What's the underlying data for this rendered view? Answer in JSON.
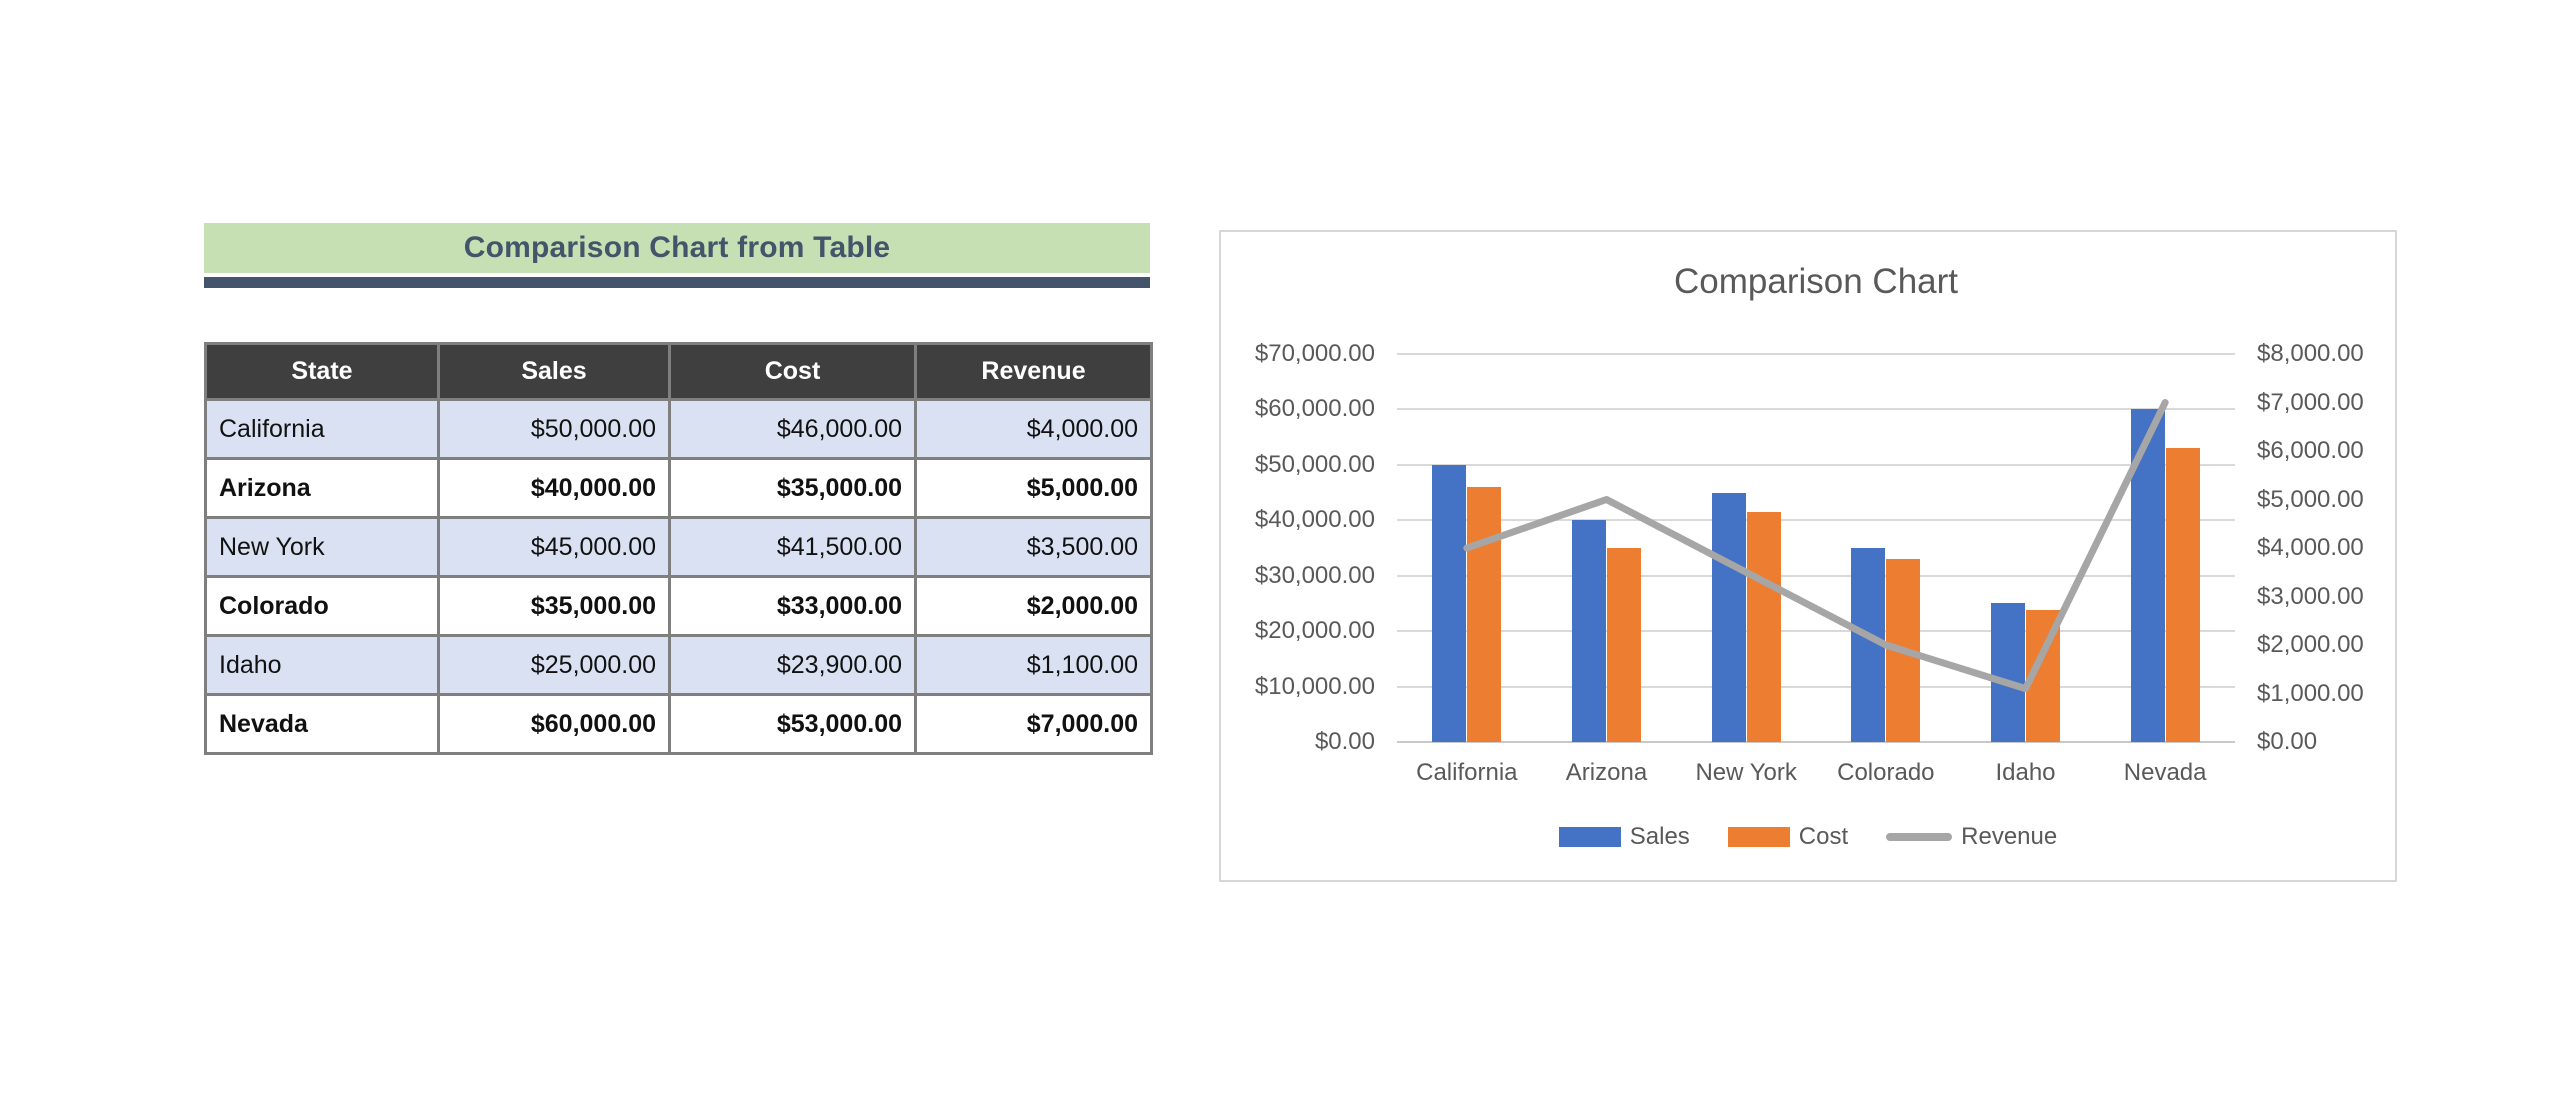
{
  "colors": {
    "banner_green": "#C6E0B4",
    "slate_accent": "#44546A",
    "table_header_dark": "#3F3F3F",
    "band_blue": "#D9E1F2",
    "border_gray": "#7F7F7F",
    "axis_text_gray": "#595959",
    "gridline_gray": "#D9D9D9",
    "sales_blue": "#4472C4",
    "cost_orange": "#ED7D31",
    "revenue_gray": "#A6A6A6"
  },
  "left_panel": {
    "banner": {
      "title": "Comparison Chart from Table"
    },
    "table": {
      "columns": [
        "State",
        "Sales",
        "Cost",
        "Revenue"
      ],
      "rows": [
        {
          "state": "California",
          "sales": "$50,000.00",
          "cost": "$46,000.00",
          "revenue": "$4,000.00",
          "shaded": true,
          "bold": false
        },
        {
          "state": "Arizona",
          "sales": "$40,000.00",
          "cost": "$35,000.00",
          "revenue": "$5,000.00",
          "shaded": false,
          "bold": true
        },
        {
          "state": "New York",
          "sales": "$45,000.00",
          "cost": "$41,500.00",
          "revenue": "$3,500.00",
          "shaded": true,
          "bold": false
        },
        {
          "state": "Colorado",
          "sales": "$35,000.00",
          "cost": "$33,000.00",
          "revenue": "$2,000.00",
          "shaded": false,
          "bold": true
        },
        {
          "state": "Idaho",
          "sales": "$25,000.00",
          "cost": "$23,900.00",
          "revenue": "$1,100.00",
          "shaded": true,
          "bold": false
        },
        {
          "state": "Nevada",
          "sales": "$60,000.00",
          "cost": "$53,000.00",
          "revenue": "$7,000.00",
          "shaded": false,
          "bold": true
        }
      ]
    }
  },
  "chart_data": {
    "type": "combo",
    "title": "Comparison Chart",
    "categories": [
      "California",
      "Arizona",
      "New York",
      "Colorado",
      "Idaho",
      "Nevada"
    ],
    "series": [
      {
        "name": "Sales",
        "type": "bar",
        "axis": "primary",
        "color": "#4472C4",
        "values": [
          50000,
          40000,
          45000,
          35000,
          25000,
          60000
        ]
      },
      {
        "name": "Cost",
        "type": "bar",
        "axis": "primary",
        "color": "#ED7D31",
        "values": [
          46000,
          35000,
          41500,
          33000,
          23900,
          53000
        ]
      },
      {
        "name": "Revenue",
        "type": "line",
        "axis": "secondary",
        "color": "#A6A6A6",
        "values": [
          4000,
          5000,
          3500,
          2000,
          1100,
          7000
        ]
      }
    ],
    "primary_axis": {
      "min": 0,
      "max": 70000,
      "step": 10000,
      "labels": [
        "$70,000.00",
        "$60,000.00",
        "$50,000.00",
        "$40,000.00",
        "$30,000.00",
        "$20,000.00",
        "$10,000.00",
        "$0.00"
      ]
    },
    "secondary_axis": {
      "min": 0,
      "max": 8000,
      "step": 1000,
      "labels": [
        "$8,000.00",
        "$7,000.00",
        "$6,000.00",
        "$5,000.00",
        "$4,000.00",
        "$3,000.00",
        "$2,000.00",
        "$1,000.00",
        "$0.00"
      ]
    },
    "legend_position": "bottom",
    "gridlines": true
  }
}
